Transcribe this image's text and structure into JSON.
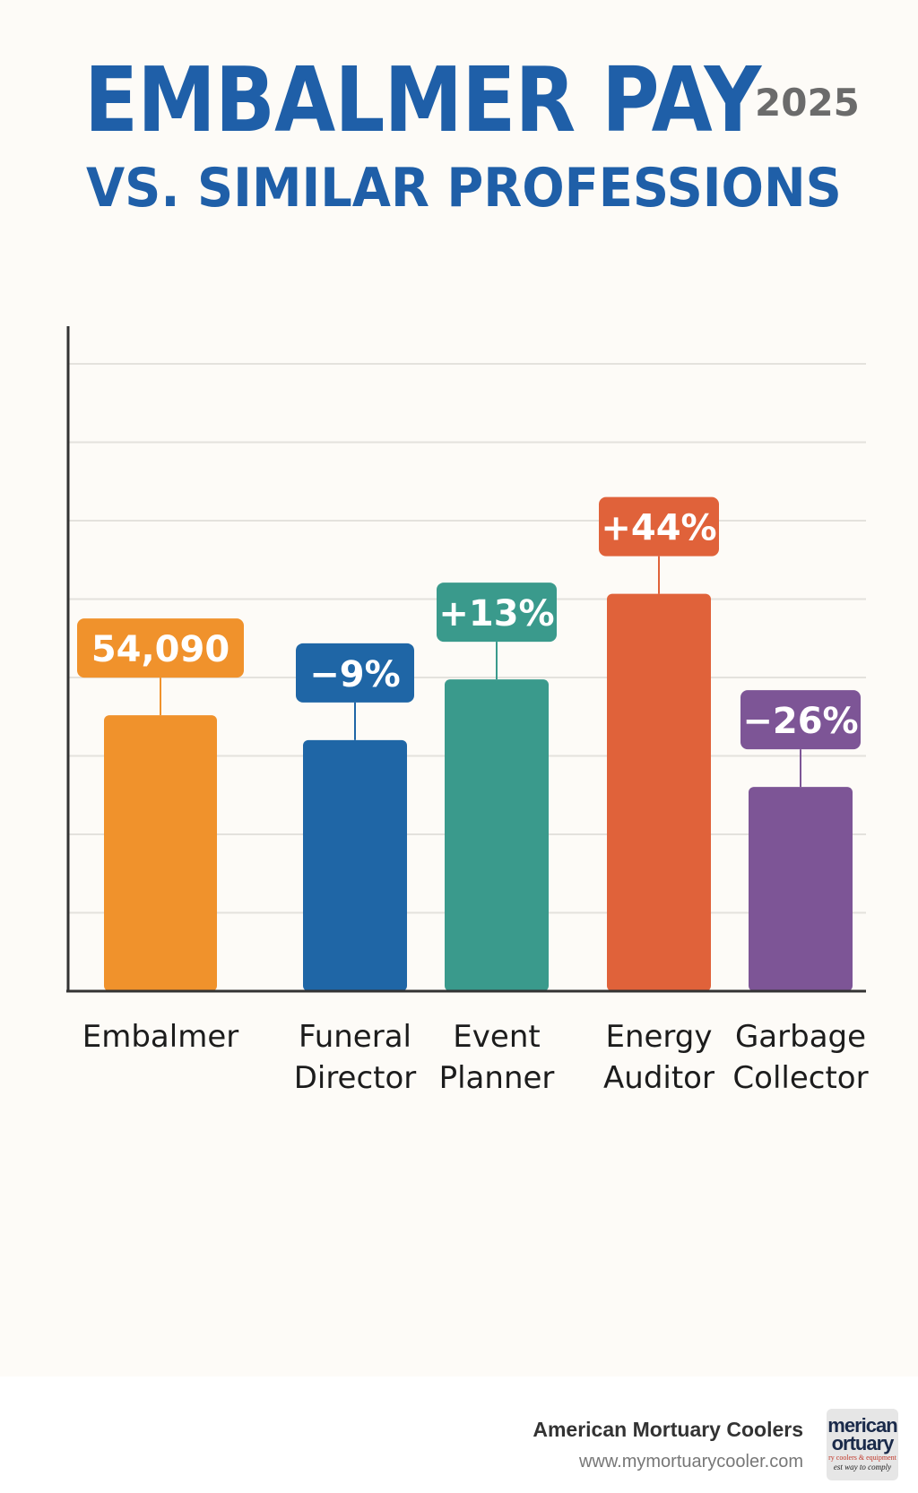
{
  "header": {
    "title": "EMBALMER PAY",
    "year": "2025",
    "subtitle": "VS. SIMILAR PROFESSIONS"
  },
  "chart_data": {
    "type": "bar",
    "categories": [
      [
        "Embalmer"
      ],
      [
        "Funeral",
        "Director"
      ],
      [
        "Event",
        "Planner"
      ],
      [
        "Energy",
        "Auditor"
      ],
      [
        "Garbage",
        "Collector"
      ]
    ],
    "values": [
      54090,
      49222,
      61122,
      77890,
      40027
    ],
    "data_labels": [
      "54,090",
      "−9%",
      "+13%",
      "+44%",
      "−26%"
    ],
    "colors": [
      "#f0922c",
      "#1f66a6",
      "#3a9a8c",
      "#e0623a",
      "#7d5596"
    ],
    "ylim": [
      0,
      130000
    ],
    "grid": true
  },
  "footer": {
    "brand_name": "American Mortuary Coolers",
    "url": "www.mymortuarycooler.com",
    "logo_text": [
      "merican",
      "ortuary",
      "ry coolers & equipment",
      "est way to comply"
    ]
  }
}
